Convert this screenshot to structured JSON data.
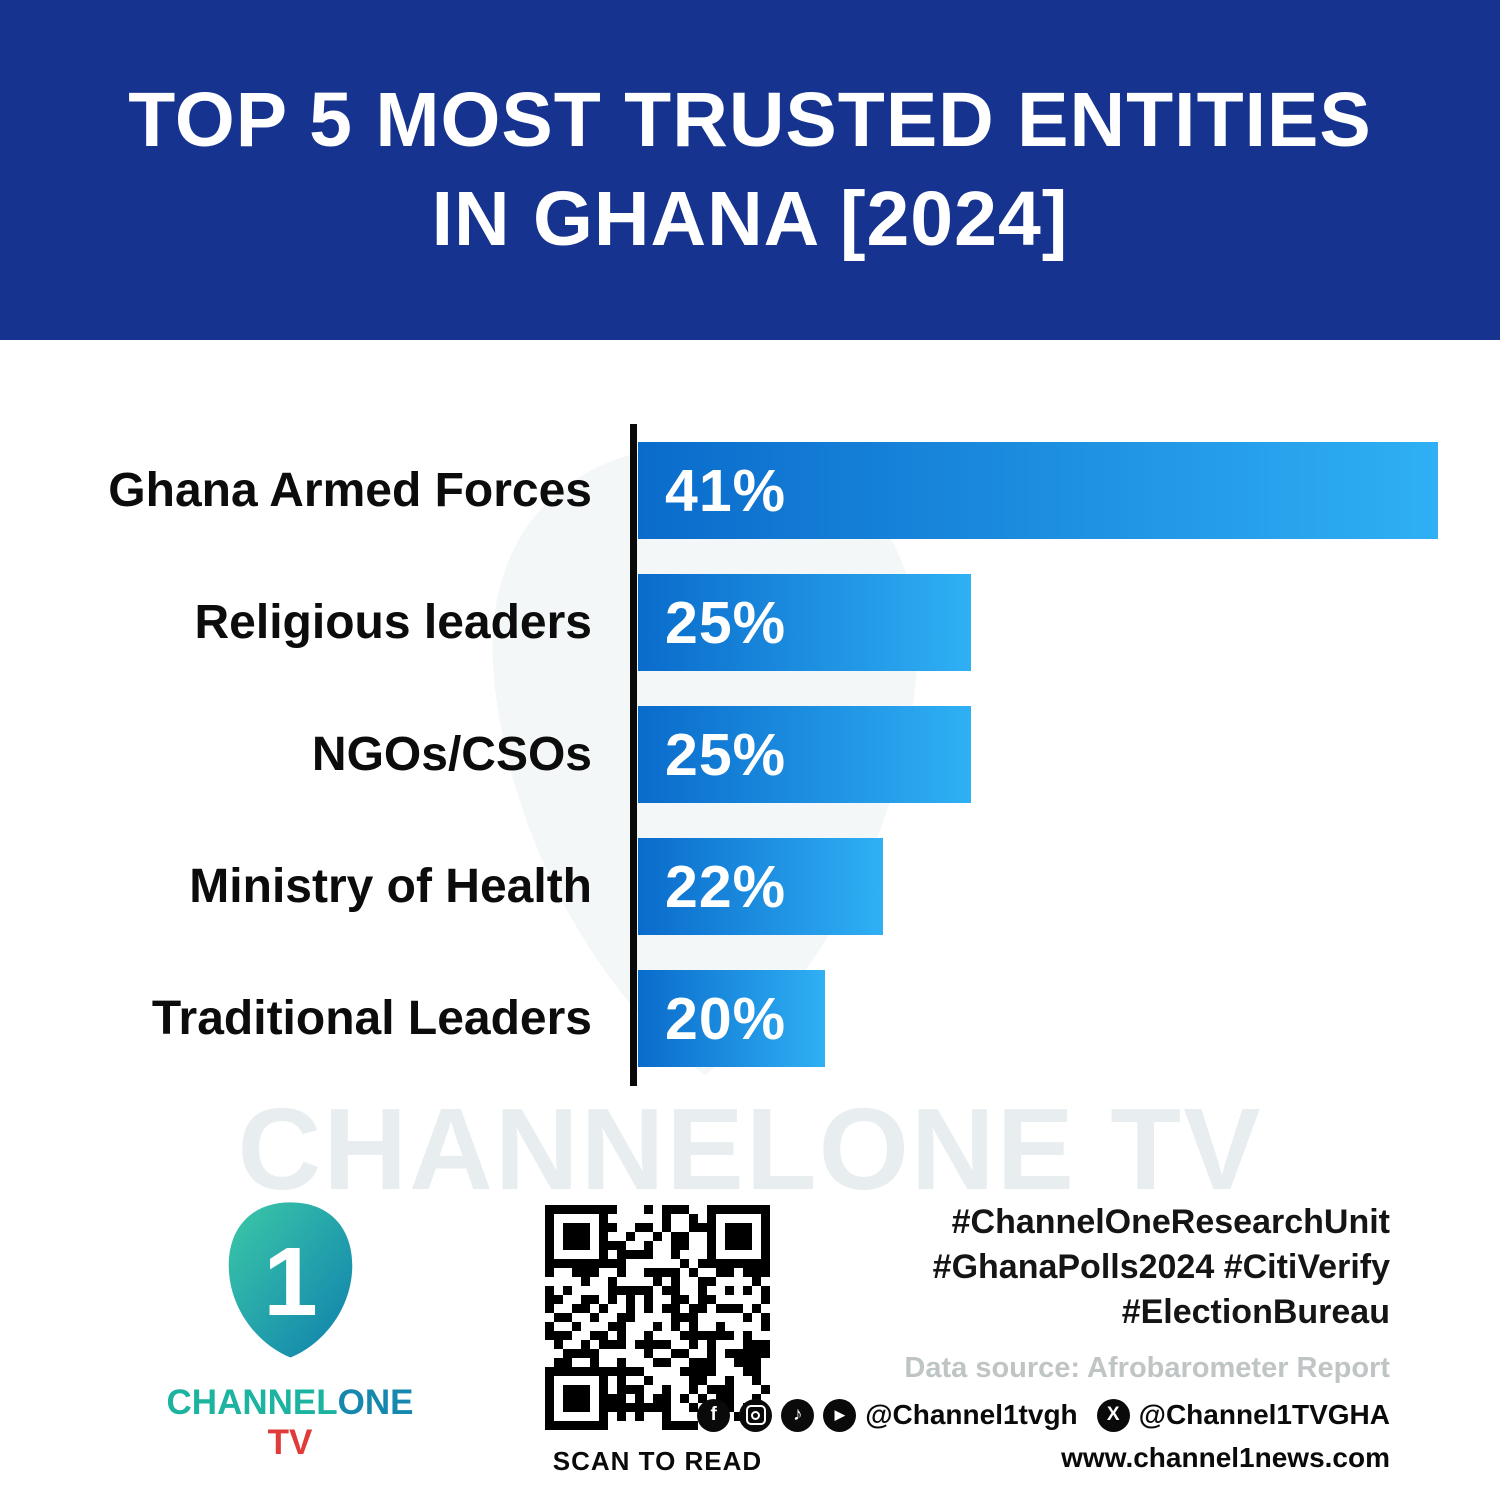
{
  "header": {
    "title_line1": "TOP 5 MOST TRUSTED ENTITIES",
    "title_line2": "IN GHANA [2024]"
  },
  "chart_data": {
    "type": "bar",
    "orientation": "horizontal",
    "title": "TOP 5 MOST TRUSTED ENTITIES IN GHANA [2024]",
    "unit": "%",
    "categories": [
      "Ghana Armed Forces",
      "Religious leaders",
      "NGOs/CSOs",
      "Ministry of Health",
      "Traditional Leaders"
    ],
    "values": [
      41,
      25,
      25,
      22,
      20
    ],
    "value_labels": [
      "41%",
      "25%",
      "25%",
      "22%",
      "20%"
    ],
    "bar_color_start": "#0a6bcb",
    "bar_color_end": "#2fb0f4",
    "axis_color": "#0a0a0a",
    "legend": "none",
    "grid": "off",
    "source": "Afrobarometer Report"
  },
  "watermark": "CHANNELONE TV",
  "footer": {
    "logo": {
      "numeral": "1",
      "channel": "CHANNEL",
      "one": "ONE",
      "tv": " TV"
    },
    "qr_caption": "SCAN TO READ",
    "hashtags": [
      "#ChannelOneResearchUnit",
      "#GhanaPolls2024 #CitiVerify",
      "#ElectionBureau"
    ],
    "data_source": "Data source: Afrobarometer Report",
    "social_handle_1": "@Channel1tvgh",
    "social_handle_2": "@Channel1TVGHA",
    "website": "www.channel1news.com"
  }
}
